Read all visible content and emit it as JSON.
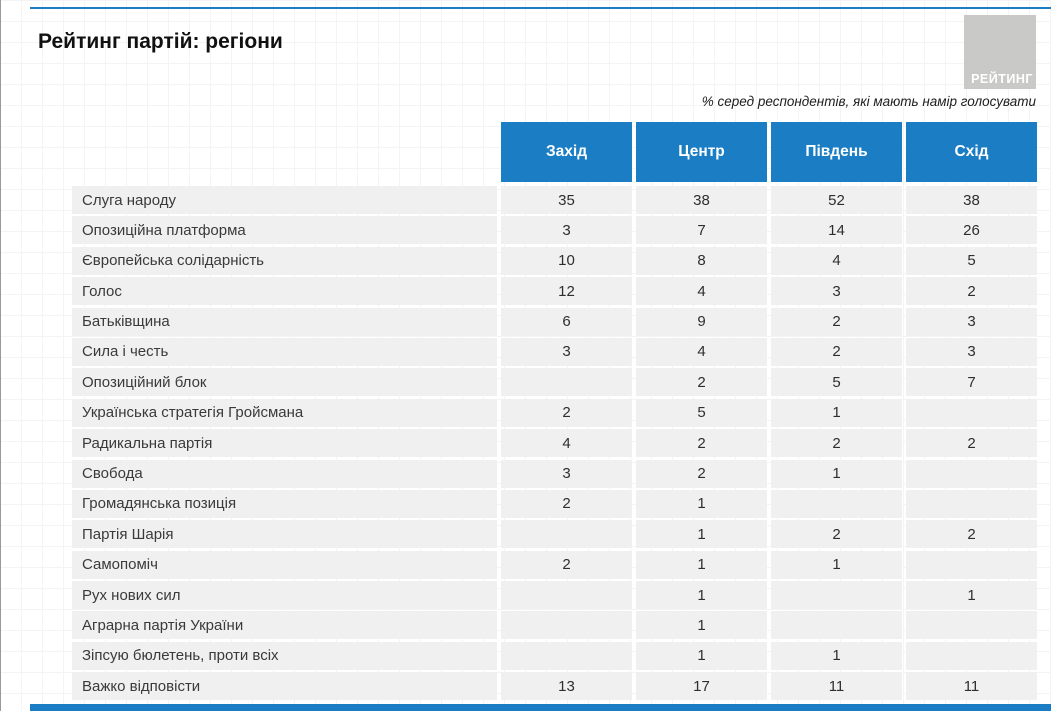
{
  "title": "Рейтинг партій: регіони",
  "logo": {
    "text": "РЕЙТИНГ"
  },
  "subtitle": "% серед респондентів, які мають намір голосувати",
  "colors": {
    "accent_blue": "#1b7ec5",
    "row_gray": "#f0f0f0",
    "logo_gray": "#c9c9c7"
  },
  "chart_data": {
    "type": "table",
    "title": "Рейтинг партій: регіони",
    "note": "% серед респондентів, які мають намір голосувати",
    "columns": [
      "Захід",
      "Центр",
      "Південь",
      "Схід"
    ],
    "rows": [
      {
        "label": "Слуга народу",
        "values": [
          "35",
          "38",
          "52",
          "38"
        ]
      },
      {
        "label": "Опозиційна платформа",
        "values": [
          "3",
          "7",
          "14",
          "26"
        ]
      },
      {
        "label": "Європейська солідарність",
        "values": [
          "10",
          "8",
          "4",
          "5"
        ]
      },
      {
        "label": "Голос",
        "values": [
          "12",
          "4",
          "3",
          "2"
        ]
      },
      {
        "label": "Батьківщина",
        "values": [
          "6",
          "9",
          "2",
          "3"
        ]
      },
      {
        "label": "Сила і честь",
        "values": [
          "3",
          "4",
          "2",
          "3"
        ]
      },
      {
        "label": "Опозиційний блок",
        "values": [
          "",
          "2",
          "5",
          "7"
        ]
      },
      {
        "label": "Українська стратегія Гройсмана",
        "values": [
          "2",
          "5",
          "1",
          ""
        ]
      },
      {
        "label": "Радикальна партія",
        "values": [
          "4",
          "2",
          "2",
          "2"
        ]
      },
      {
        "label": "Свобода",
        "values": [
          "3",
          "2",
          "1",
          ""
        ]
      },
      {
        "label": "Громадянська позиція",
        "values": [
          "2",
          "1",
          "",
          ""
        ]
      },
      {
        "label": "Партія Шарія",
        "values": [
          "",
          "1",
          "2",
          "2"
        ]
      },
      {
        "label": "Самопоміч",
        "values": [
          "2",
          "1",
          "1",
          ""
        ]
      },
      {
        "label": "Рух нових сил",
        "values": [
          "",
          "1",
          "",
          "1"
        ]
      },
      {
        "label": "Аграрна партія України",
        "values": [
          "",
          "1",
          "",
          ""
        ]
      },
      {
        "label": "Зіпсую бюлетень, проти всіх",
        "values": [
          "",
          "1",
          "1",
          ""
        ]
      },
      {
        "label": "Важко відповісти",
        "values": [
          "13",
          "17",
          "11",
          "11"
        ]
      }
    ]
  }
}
